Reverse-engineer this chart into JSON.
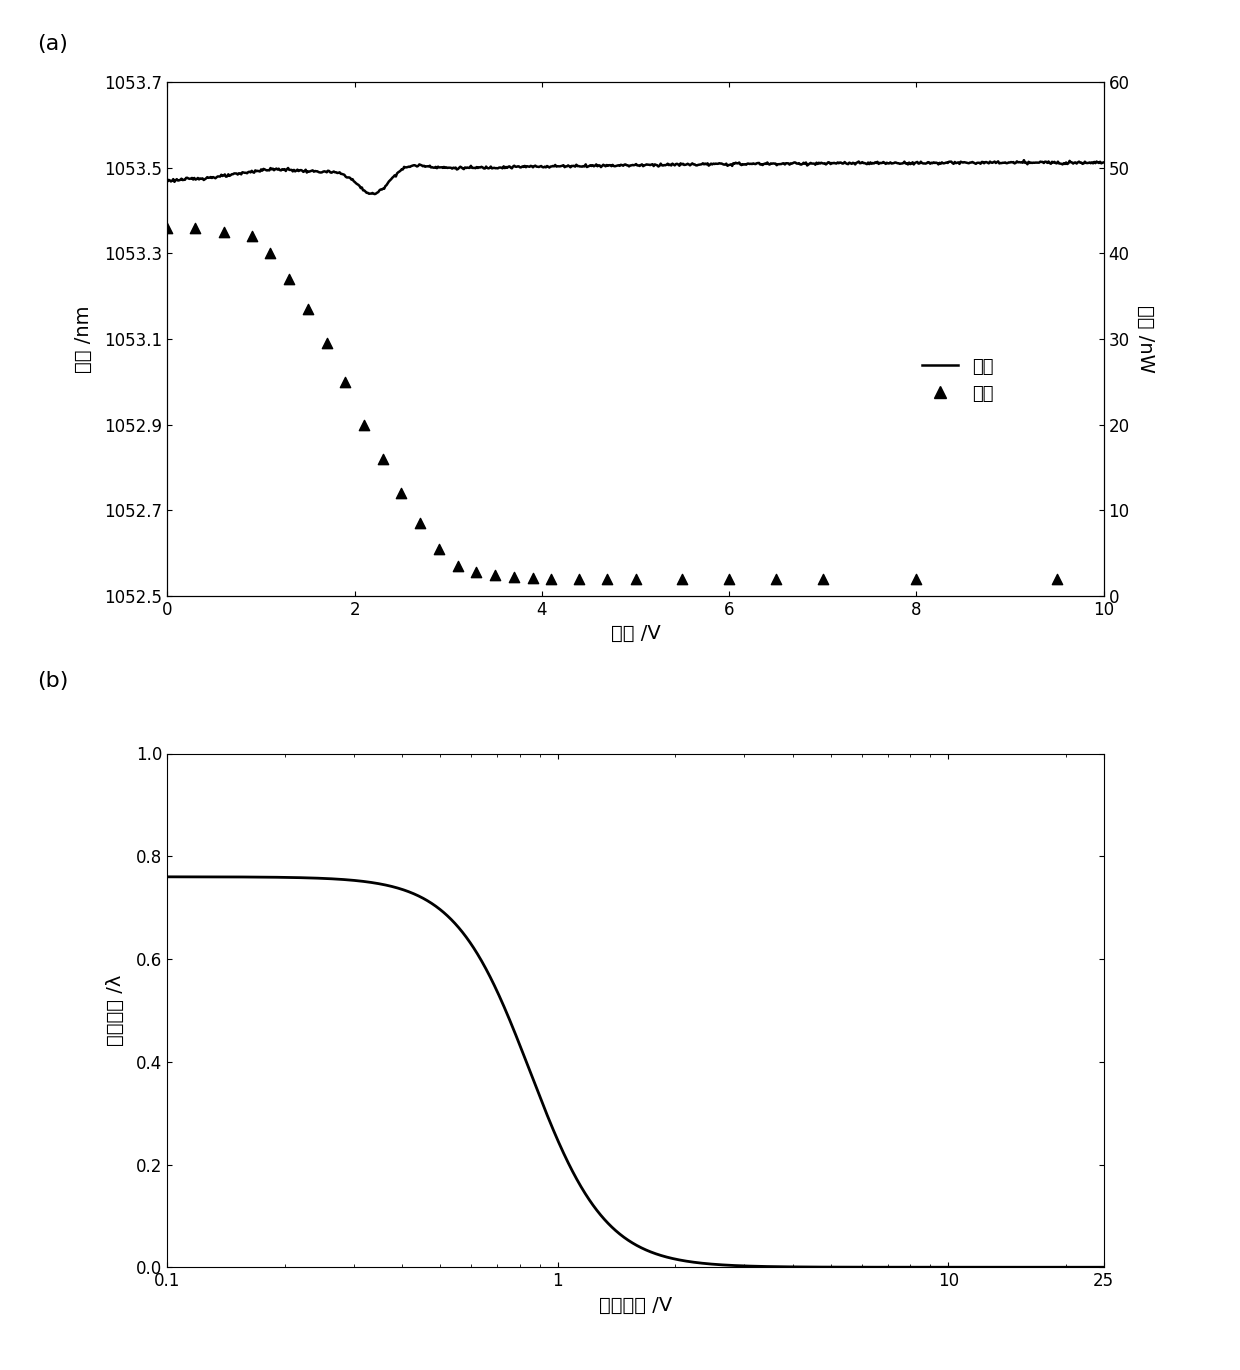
{
  "panel_a": {
    "xlabel": "电压 /V",
    "ylabel_left": "波长 /nm",
    "ylabel_right": "功率 /nW",
    "xlim": [
      0,
      10
    ],
    "ylim_left": [
      1052.5,
      1053.7
    ],
    "ylim_right": [
      0,
      60
    ],
    "yticks_left": [
      1052.5,
      1052.7,
      1052.9,
      1053.1,
      1053.3,
      1053.5,
      1053.7
    ],
    "yticks_right": [
      0,
      10,
      20,
      30,
      40,
      50,
      60
    ],
    "xticks": [
      0,
      2,
      4,
      6,
      8,
      10
    ],
    "legend_line": "功率",
    "legend_marker": "波长",
    "line_color": "#000000",
    "marker_color": "#000000",
    "background_color": "#ffffff",
    "wl_x": [
      0.0,
      0.3,
      0.6,
      0.9,
      1.1,
      1.3,
      1.5,
      1.7,
      1.9,
      2.1,
      2.3,
      2.5,
      2.7,
      2.9,
      3.1,
      3.3,
      3.5,
      3.7,
      3.9,
      4.1,
      4.4,
      4.7,
      5.0,
      5.5,
      6.0,
      6.5,
      7.0,
      8.0,
      9.5
    ],
    "wl_y": [
      1053.36,
      1053.36,
      1053.35,
      1053.34,
      1053.3,
      1053.24,
      1053.17,
      1053.09,
      1053.0,
      1052.9,
      1052.82,
      1052.74,
      1052.67,
      1052.61,
      1052.57,
      1052.555,
      1052.55,
      1052.545,
      1052.542,
      1052.54,
      1052.54,
      1052.54,
      1052.54,
      1052.54,
      1052.54,
      1052.54,
      1052.54,
      1052.54,
      1052.54
    ]
  },
  "panel_b": {
    "xlabel": "驱动电压 /V",
    "ylabel": "延迟能力 /λ",
    "xlim": [
      0.1,
      25
    ],
    "ylim": [
      0,
      1
    ],
    "yticks": [
      0,
      0.2,
      0.4,
      0.6,
      0.8,
      1.0
    ],
    "line_color": "#000000",
    "background_color": "#ffffff",
    "V_flat": 0.76,
    "V_half": 0.85,
    "steepness": 4.5
  }
}
